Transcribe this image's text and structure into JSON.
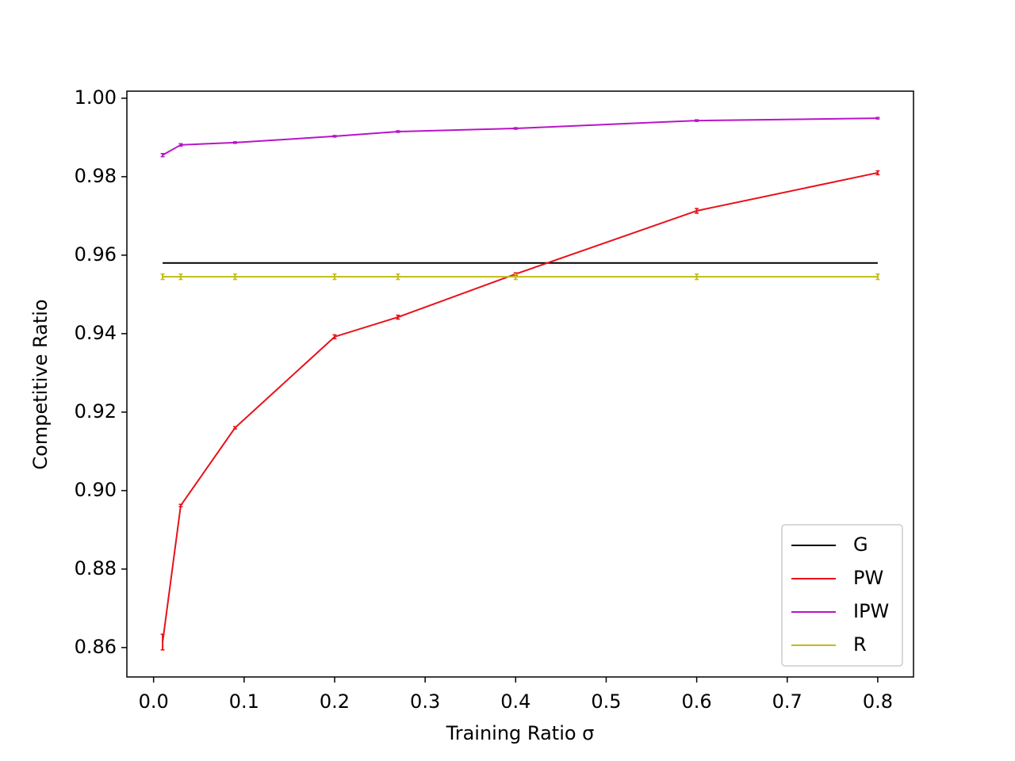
{
  "chart_data": {
    "type": "line",
    "x_label": "Training Ratio σ",
    "y_label": "Competitive Ratio",
    "x": [
      0.01,
      0.03,
      0.09,
      0.2,
      0.27,
      0.4,
      0.6,
      0.8
    ],
    "series": [
      {
        "name": "G",
        "color": "#000000",
        "values": [
          0.958,
          0.958,
          0.958,
          0.958,
          0.958,
          0.958,
          0.958,
          0.958
        ]
      },
      {
        "name": "PW",
        "color": "#e8111a",
        "values": [
          0.8614,
          0.8962,
          0.916,
          0.9392,
          0.9442,
          0.9552,
          0.9713,
          0.981
        ],
        "errors": [
          0.002,
          0.0003,
          0.0003,
          0.0005,
          0.0005,
          0.0003,
          0.0006,
          0.0005
        ]
      },
      {
        "name": "IPW",
        "color": "#b914c8",
        "values": [
          0.9855,
          0.9881,
          0.9887,
          0.9903,
          0.9915,
          0.9923,
          0.9943,
          0.9949
        ],
        "errors": [
          0.0004,
          0.0003,
          0.0002,
          0.0002,
          0.0002,
          0.0002,
          0.0002,
          0.0002
        ]
      },
      {
        "name": "R",
        "color": "#c3bb14",
        "values": [
          0.9545,
          0.9545,
          0.9545,
          0.9545,
          0.9545,
          0.9545,
          0.9545,
          0.9545
        ],
        "errors": [
          0.0007,
          0.0007,
          0.0007,
          0.0007,
          0.0007,
          0.0007,
          0.0007,
          0.0007
        ]
      }
    ],
    "xlim": [
      -0.0295,
      0.8395
    ],
    "ylim": [
      0.8525,
      1.0018
    ],
    "xticks": [
      {
        "value": 0,
        "label": "0.0"
      },
      0.1,
      0.2,
      0.3,
      0.4,
      0.5,
      0.6,
      0.7,
      0.8
    ],
    "yticks": [
      0.86,
      0.88,
      {
        "value": 0.9,
        "label": "0.90"
      },
      0.92,
      0.94,
      0.96,
      0.98,
      {
        "value": 1,
        "label": "1.00"
      }
    ],
    "legend": "lower right",
    "grid": false
  }
}
